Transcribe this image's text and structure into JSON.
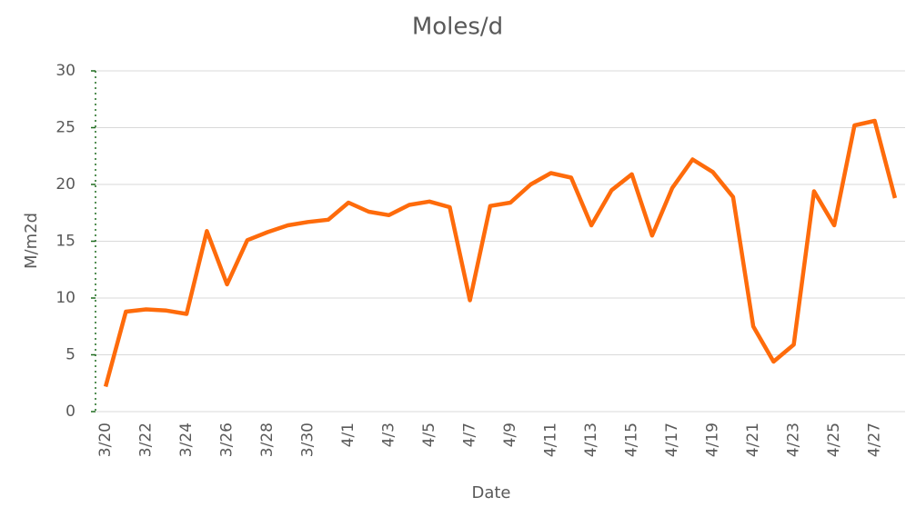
{
  "chart_data": {
    "type": "line",
    "title": "Moles/d",
    "xlabel": "Date",
    "ylabel": "M/m2d",
    "categories": [
      "3/20",
      null,
      "3/22",
      null,
      "3/24",
      null,
      "3/26",
      null,
      "3/28",
      null,
      "3/30",
      null,
      "4/1",
      null,
      "4/3",
      null,
      "4/5",
      null,
      "4/7",
      null,
      "4/9",
      null,
      "4/11",
      null,
      "4/13",
      null,
      "4/15",
      null,
      "4/17",
      null,
      "4/19",
      null,
      "4/21",
      null,
      "4/23",
      null,
      "4/25",
      null,
      "4/27",
      null
    ],
    "values": [
      2.2,
      8.8,
      9.0,
      8.9,
      8.6,
      15.9,
      11.2,
      15.1,
      15.8,
      16.4,
      16.7,
      16.9,
      18.4,
      17.6,
      17.3,
      18.2,
      18.5,
      18.0,
      9.8,
      18.1,
      18.4,
      20.0,
      21.0,
      20.6,
      16.4,
      19.5,
      20.9,
      15.5,
      19.7,
      22.2,
      21.1,
      18.9,
      7.5,
      4.4,
      5.9,
      19.4,
      16.4,
      25.2,
      25.6,
      18.8
    ],
    "color": "#fe6b0b",
    "ylim": [
      0,
      30
    ],
    "yticks": [
      0,
      5,
      10,
      15,
      20,
      25,
      30
    ],
    "grid": true
  }
}
